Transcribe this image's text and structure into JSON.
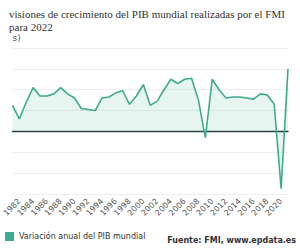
{
  "chart_data": {
    "type": "line",
    "title": "visiones de crecimiento del PIB mundial realizadas por el FMI para 2022",
    "y_label": "s)",
    "source": "Fuente: FMI, www.epdata.es",
    "categories": [
      null,
      "1982",
      null,
      "1984",
      null,
      "1986",
      null,
      "1988",
      null,
      "1990",
      null,
      "1992",
      null,
      "1994",
      null,
      "1996",
      null,
      "1998",
      null,
      "2000",
      null,
      "2002",
      null,
      "2004",
      null,
      "2006",
      null,
      "2008",
      null,
      "2010",
      null,
      "2012",
      null,
      "2014",
      null,
      "2016",
      null,
      "2018",
      null,
      "2020",
      null
    ],
    "series": [
      {
        "name": "Variación anual del PIB mundial",
        "color": "#3dab8e",
        "marker": "circle",
        "values": [
          2.5,
          1.2,
          2.8,
          4.2,
          3.4,
          3.4,
          3.6,
          4.2,
          3.6,
          3.2,
          2.2,
          2.1,
          2.0,
          3.2,
          3.3,
          3.7,
          3.9,
          2.6,
          3.4,
          4.5,
          2.5,
          2.9,
          4.0,
          5.0,
          4.6,
          5.0,
          5.1,
          3.0,
          -0.6,
          5.0,
          4.0,
          3.2,
          3.3,
          3.3,
          3.2,
          3.1,
          3.6,
          3.5,
          2.6,
          -5.5,
          6.0
        ]
      }
    ],
    "ylim": [
      -6,
      8
    ],
    "yticks": [
      -6,
      -4,
      -2,
      0,
      2,
      4,
      6,
      8
    ],
    "grid": true,
    "tick_labels": "x",
    "legend": "bottom-left"
  }
}
